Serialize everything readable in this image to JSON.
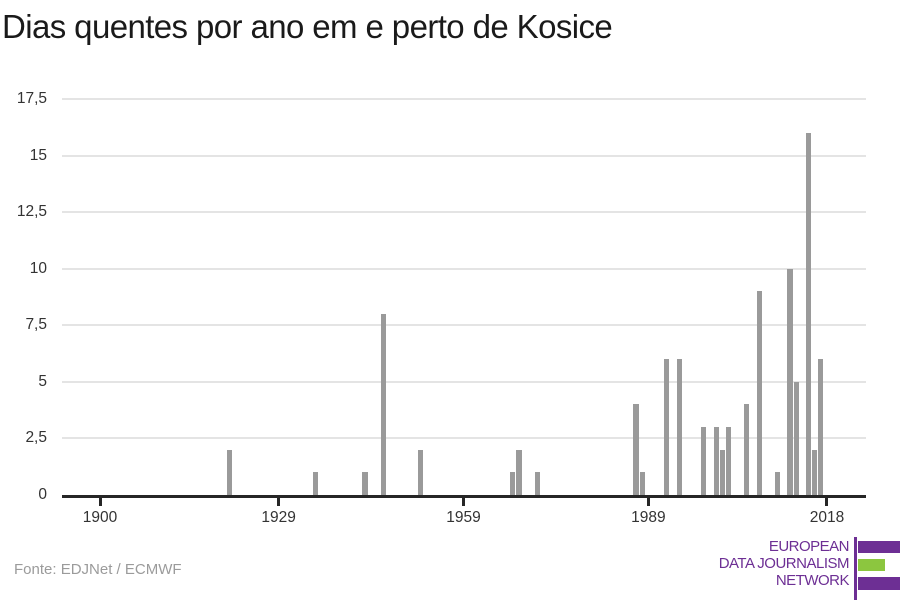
{
  "title": "Dias quentes por ano em e perto de Kosice",
  "source": "Fonte: EDJNet / ECMWF",
  "logo": {
    "lines": [
      "EUROPEAN",
      "DATA JOURNALISM",
      "NETWORK"
    ],
    "purple": "#6d2f94",
    "green": "#8cc63f"
  },
  "colors": {
    "bar": "#9a9a9a",
    "gridline": "#e4e4e4",
    "axis": "#262626",
    "tick_label": "#333333",
    "title": "#1a1a1a",
    "source": "#9b9b9b"
  },
  "chart_data": {
    "type": "bar",
    "title": "Dias quentes por ano em e perto de Kosice",
    "xlabel": "",
    "ylabel": "",
    "legend": null,
    "grid": true,
    "ylim": [
      0,
      17.5
    ],
    "xlim": [
      1894,
      2024
    ],
    "y_ticks": [
      {
        "value": 0,
        "label": "0"
      },
      {
        "value": 2.5,
        "label": "2,5"
      },
      {
        "value": 5,
        "label": "5"
      },
      {
        "value": 7.5,
        "label": "7,5"
      },
      {
        "value": 10,
        "label": "10"
      },
      {
        "value": 12.5,
        "label": "12,5"
      },
      {
        "value": 15,
        "label": "15"
      },
      {
        "value": 17.5,
        "label": "17,5"
      }
    ],
    "x_ticks": [
      {
        "value": 1900,
        "label": "1900"
      },
      {
        "value": 1929,
        "label": "1929"
      },
      {
        "value": 1959,
        "label": "1959"
      },
      {
        "value": 1989,
        "label": "1989"
      },
      {
        "value": 2018,
        "label": "2018"
      }
    ],
    "points": [
      {
        "year": 1921,
        "days": 2
      },
      {
        "year": 1935,
        "days": 1
      },
      {
        "year": 1943,
        "days": 1
      },
      {
        "year": 1946,
        "days": 8
      },
      {
        "year": 1952,
        "days": 2
      },
      {
        "year": 1967,
        "days": 1
      },
      {
        "year": 1968,
        "days": 2
      },
      {
        "year": 1971,
        "days": 1
      },
      {
        "year": 1987,
        "days": 4
      },
      {
        "year": 1988,
        "days": 1
      },
      {
        "year": 1992,
        "days": 6
      },
      {
        "year": 1994,
        "days": 6
      },
      {
        "year": 1998,
        "days": 3
      },
      {
        "year": 2000,
        "days": 3
      },
      {
        "year": 2001,
        "days": 2
      },
      {
        "year": 2002,
        "days": 3
      },
      {
        "year": 2005,
        "days": 4
      },
      {
        "year": 2007,
        "days": 9
      },
      {
        "year": 2010,
        "days": 1
      },
      {
        "year": 2012,
        "days": 10
      },
      {
        "year": 2013,
        "days": 5
      },
      {
        "year": 2015,
        "days": 16
      },
      {
        "year": 2016,
        "days": 2
      },
      {
        "year": 2017,
        "days": 6
      }
    ]
  }
}
